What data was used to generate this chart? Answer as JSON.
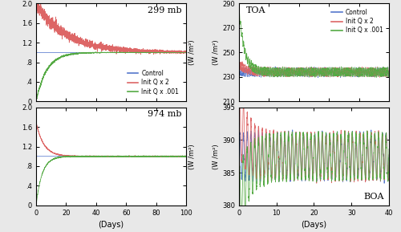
{
  "title_tl": "299 mb",
  "title_bl": "974 mb",
  "title_tr": "TOA",
  "title_br": "BOA",
  "xlabel": "(Days)",
  "ylabel_right": "(W /m²)",
  "legend_labels": [
    "Control",
    "Init Q x 2",
    "Init Q x .001"
  ],
  "colors": {
    "control": "#5577cc",
    "double": "#dd6666",
    "zero": "#55aa44"
  },
  "tl_xlim": [
    0,
    100
  ],
  "tl_ylim": [
    0.0,
    2.0
  ],
  "tl_yticks": [
    0.0,
    0.4,
    0.8,
    1.2,
    1.6,
    2.0
  ],
  "tl_yticklabels": [
    "0",
    ".4",
    ".8",
    "1.2",
    "1.6",
    "2.0"
  ],
  "tl_xticks": [
    0,
    20,
    40,
    60,
    80,
    100
  ],
  "bl_xlim": [
    0,
    100
  ],
  "bl_ylim": [
    0.0,
    2.0
  ],
  "bl_yticks": [
    0.0,
    0.4,
    0.8,
    1.2,
    1.6,
    2.0
  ],
  "bl_yticklabels": [
    "0",
    ".4",
    ".8",
    "1.2",
    "1.6",
    "2.0"
  ],
  "bl_xticks": [
    0,
    20,
    40,
    60,
    80,
    100
  ],
  "bl_xticklabels": [
    "0",
    "20",
    "40",
    "60",
    "80",
    "100"
  ],
  "tr_xlim": [
    0,
    100
  ],
  "tr_ylim": [
    210,
    290
  ],
  "tr_yticks": [
    210,
    230,
    250,
    270,
    290
  ],
  "tr_yticklabels": [
    "210",
    "230",
    "250",
    "270",
    "290"
  ],
  "tr_xticks": [
    0,
    20,
    40,
    60,
    80,
    100
  ],
  "br_xlim": [
    0,
    40
  ],
  "br_ylim": [
    380,
    395
  ],
  "br_yticks": [
    380,
    385,
    390,
    395
  ],
  "br_yticklabels": [
    "380",
    "385",
    "390",
    "395"
  ],
  "br_xticks": [
    0,
    10,
    20,
    30,
    40
  ],
  "br_xticklabels": [
    "0",
    "10",
    "20",
    "30",
    "40"
  ],
  "bg_color": "#ffffff",
  "fig_bg": "#e8e8e8"
}
